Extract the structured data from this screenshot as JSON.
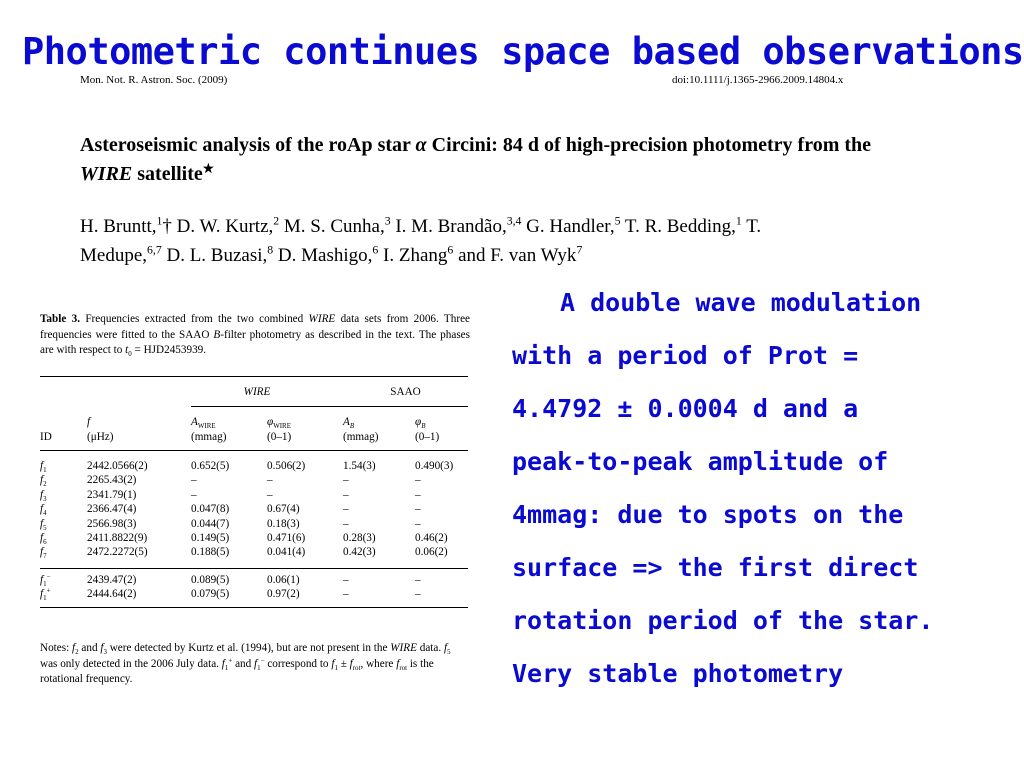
{
  "slide_title": "Photometric continues space based observations.",
  "journal": {
    "name": "Mon. Not. R. Astron. Soc. (2009)",
    "doi": "doi:10.1111/j.1365-2966.2009.14804.x"
  },
  "paper": {
    "title_part1": "Asteroseismic analysis of the roAp star ",
    "title_alpha": "α",
    "title_part2": " Circini: 84 d of high-precision photometry from the ",
    "title_wire": "WIRE",
    "title_part3": " satellite",
    "title_star": "★",
    "authors_line1": "H. Bruntt,",
    "authors": [
      {
        "name": "H. Bruntt,",
        "sup": "1",
        "after": "† D. W. Kurtz,"
      },
      {
        "name": "",
        "sup": "2",
        "after": " M. S. Cunha,"
      },
      {
        "name": "",
        "sup": "3",
        "after": " I. M. Brandão,"
      },
      {
        "name": "",
        "sup": "3,4",
        "after": " G. Handler,"
      },
      {
        "name": "",
        "sup": "5",
        "after": " T. R. Bedding,"
      },
      {
        "name": "",
        "sup": "1",
        "after": " T. Medupe,"
      },
      {
        "name": "",
        "sup": "6,7",
        "after": " D. L. Buzasi,"
      },
      {
        "name": "",
        "sup": "8",
        "after": " D. Mashigo,"
      },
      {
        "name": "",
        "sup": "6",
        "after": " I. Zhang"
      },
      {
        "name": "",
        "sup": "6",
        "after": " and F. van Wyk"
      },
      {
        "name": "",
        "sup": "7",
        "after": ""
      }
    ]
  },
  "table": {
    "label": "Table 3.",
    "caption_a": " Frequencies extracted from the two combined ",
    "caption_wire": "WIRE",
    "caption_b": " data sets from 2006. Three frequencies were fitted to the SAAO ",
    "caption_B": "B",
    "caption_c": "-filter photometry as described in the text. The phases are with respect to ",
    "caption_t": "t",
    "caption_t_sub": "0",
    "caption_d": " = HJD2453939.",
    "group_wire": "WIRE",
    "group_saao": "SAAO",
    "head_f": "f",
    "head_A": "A",
    "head_A_sub": "WIRE",
    "head_phi": "φ",
    "head_phi_sub": "WIRE",
    "head_AB": "A",
    "head_AB_sub": "B",
    "head_phiB": "φ",
    "head_phiB_sub": "B",
    "head_id": "ID",
    "unit_f": "(μHz)",
    "unit_A": "(mmag)",
    "unit_phi": "(0–1)",
    "unit_AB": "(mmag)",
    "unit_phiB": "(0–1)",
    "rows": [
      {
        "id": "f",
        "id_sub": "1",
        "f": "2442.0566(2)",
        "A": "0.652(5)",
        "phi": "0.506(2)",
        "AB": "1.54(3)",
        "phiB": "0.490(3)"
      },
      {
        "id": "f",
        "id_sub": "2",
        "f": "2265.43(2)",
        "A": "–",
        "phi": "–",
        "AB": "–",
        "phiB": "–"
      },
      {
        "id": "f",
        "id_sub": "3",
        "f": "2341.79(1)",
        "A": "–",
        "phi": "–",
        "AB": "–",
        "phiB": "–"
      },
      {
        "id": "f",
        "id_sub": "4",
        "f": "2366.47(4)",
        "A": "0.047(8)",
        "phi": "0.67(4)",
        "AB": "–",
        "phiB": "–"
      },
      {
        "id": "f",
        "id_sub": "5",
        "f": "2566.98(3)",
        "A": "0.044(7)",
        "phi": "0.18(3)",
        "AB": "–",
        "phiB": "–"
      },
      {
        "id": "f",
        "id_sub": "6",
        "f": "2411.8822(9)",
        "A": "0.149(5)",
        "phi": "0.471(6)",
        "AB": "0.28(3)",
        "phiB": "0.46(2)"
      },
      {
        "id": "f",
        "id_sub": "7",
        "f": "2472.2272(5)",
        "A": "0.188(5)",
        "phi": "0.041(4)",
        "AB": "0.42(3)",
        "phiB": "0.06(2)"
      }
    ],
    "rows2": [
      {
        "id": "f",
        "id_sub": "1",
        "id_sup": "−",
        "f": "2439.47(2)",
        "A": "0.089(5)",
        "phi": "0.06(1)",
        "AB": "–",
        "phiB": "–"
      },
      {
        "id": "f",
        "id_sub": "1",
        "id_sup": "+",
        "f": "2444.64(2)",
        "A": "0.079(5)",
        "phi": "0.97(2)",
        "AB": "–",
        "phiB": "–"
      }
    ],
    "notes_a": "Notes: ",
    "notes_b": " and ",
    "notes_c": " were detected by Kurtz et al. (1994), but are not present in the ",
    "notes_wire": "WIRE",
    "notes_d": " data. ",
    "notes_e": " was only detected in the 2006 July data. ",
    "notes_f": " and ",
    "notes_g": " correspond to ",
    "notes_h": " ± ",
    "notes_i": ", where ",
    "notes_j": " is the rotational frequency.",
    "f_sym": "f",
    "rot_sub": "rot"
  },
  "description": {
    "lines": [
      "A double wave modulation",
      "with a period of Prot =",
      "4.4792 ± 0.0004 d and a",
      "peak-to-peak amplitude of",
      "4mmag: due to spots on the",
      "surface => the first direct",
      "rotation period of the star.",
      "Very stable photometry"
    ]
  },
  "colors": {
    "accent_blue": "#0a0ad0"
  }
}
